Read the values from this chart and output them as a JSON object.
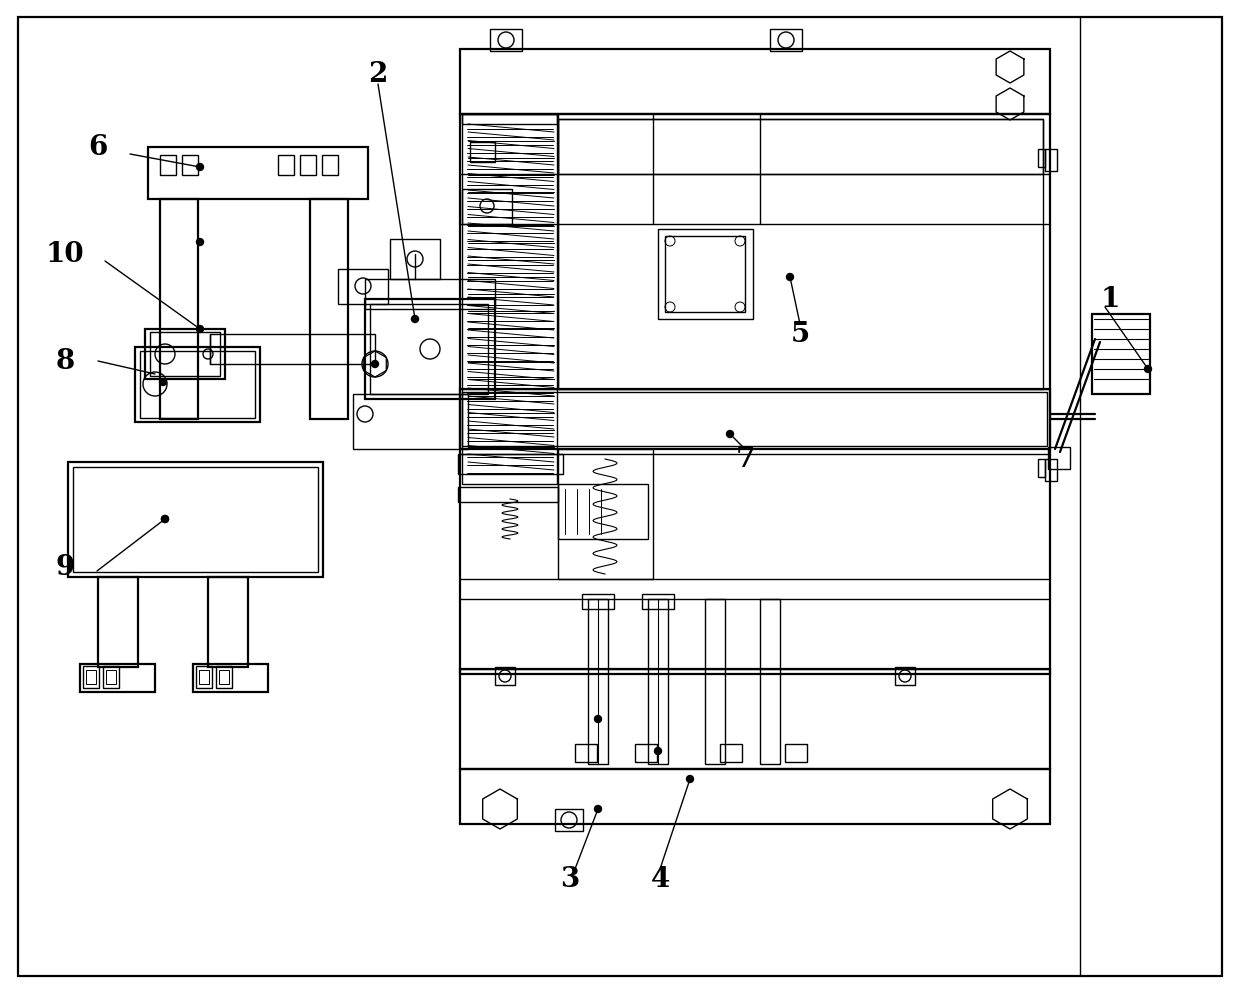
{
  "bg_color": "#ffffff",
  "line_color": "#000000",
  "lw": 1.0,
  "lw2": 1.6,
  "figsize": [
    12.4,
    9.95
  ],
  "dpi": 100
}
